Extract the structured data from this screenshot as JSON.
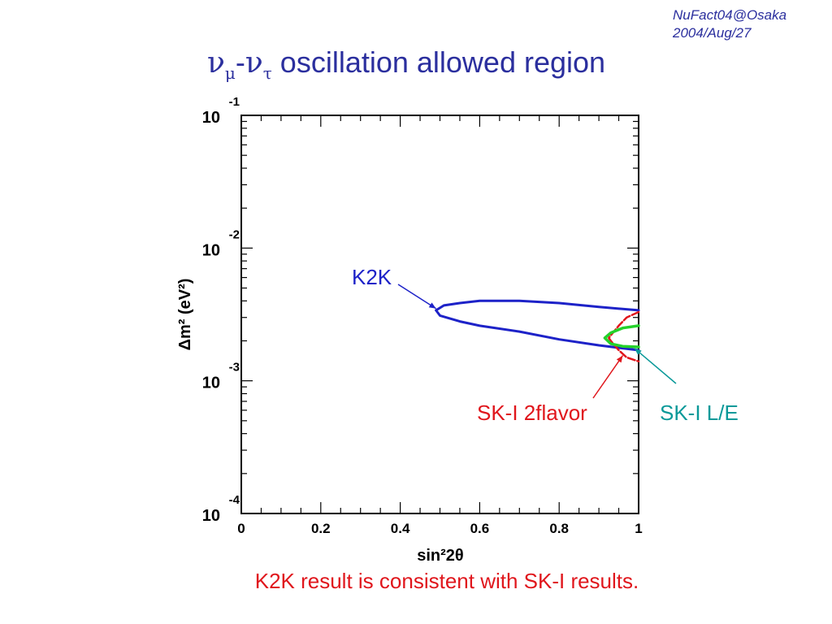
{
  "corner": {
    "line1": "NuFact04@Osaka",
    "line2": "2004/Aug/27"
  },
  "title": {
    "nu": "ν",
    "mu": "μ",
    "dash": "-",
    "tau": "τ",
    "text": " oscillation allowed region"
  },
  "footer": "K2K result is consistent with SK-I results.",
  "colors": {
    "k2k": "#1d22c8",
    "sk_2flavor": "#e0161c",
    "sk_le": "#24d12a",
    "le_label": "#0a9999",
    "title": "#2b2f9e"
  },
  "chart_data": {
    "type": "line",
    "xlabel": "sin²2θ",
    "ylabel": "Δm² (eV²)",
    "xlim": [
      0,
      1
    ],
    "ylim": [
      0.0001,
      0.1
    ],
    "yscale": "log",
    "x_ticks": [
      "0",
      "0.2",
      "0.4",
      "0.6",
      "0.8",
      "1"
    ],
    "y_ticks": [
      {
        "base": "10",
        "exp": "-1"
      },
      {
        "base": "10",
        "exp": "-2"
      },
      {
        "base": "10",
        "exp": "-3"
      },
      {
        "base": "10",
        "exp": "-4"
      }
    ],
    "grid": false,
    "series": [
      {
        "name": "K2K",
        "color": "#1d22c8",
        "points": [
          [
            1.0,
            0.0034
          ],
          [
            0.9,
            0.0036
          ],
          [
            0.8,
            0.00385
          ],
          [
            0.7,
            0.004
          ],
          [
            0.6,
            0.004
          ],
          [
            0.55,
            0.00385
          ],
          [
            0.51,
            0.0037
          ],
          [
            0.49,
            0.0034
          ],
          [
            0.5,
            0.0031
          ],
          [
            0.55,
            0.0028
          ],
          [
            0.6,
            0.0026
          ],
          [
            0.7,
            0.00235
          ],
          [
            0.8,
            0.00205
          ],
          [
            0.9,
            0.00185
          ],
          [
            1.0,
            0.0017
          ]
        ]
      },
      {
        "name": "SK-I 2flavor",
        "color": "#e0161c",
        "points": [
          [
            1.0,
            0.0033
          ],
          [
            0.97,
            0.003
          ],
          [
            0.95,
            0.0026
          ],
          [
            0.93,
            0.0022
          ],
          [
            0.925,
            0.0021
          ],
          [
            0.93,
            0.002
          ],
          [
            0.95,
            0.0017
          ],
          [
            0.97,
            0.0015
          ],
          [
            1.0,
            0.0014
          ]
        ]
      },
      {
        "name": "SK-I L/E",
        "color": "#24d12a",
        "points": [
          [
            1.0,
            0.0026
          ],
          [
            0.96,
            0.0025
          ],
          [
            0.93,
            0.0023
          ],
          [
            0.915,
            0.0021
          ],
          [
            0.93,
            0.0019
          ],
          [
            0.96,
            0.00182
          ],
          [
            1.0,
            0.0018
          ]
        ]
      }
    ],
    "annotations": [
      {
        "text": "K2K",
        "color": "#1d22c8",
        "arrow_to": [
          0.49,
          0.0035
        ]
      },
      {
        "text": "SK-I 2flavor",
        "color": "#e0161c",
        "arrow_to": [
          0.96,
          0.00155
        ]
      },
      {
        "text": "SK-I L/E",
        "color": "#0a9999",
        "arrow_to": [
          0.99,
          0.00175
        ]
      }
    ]
  }
}
